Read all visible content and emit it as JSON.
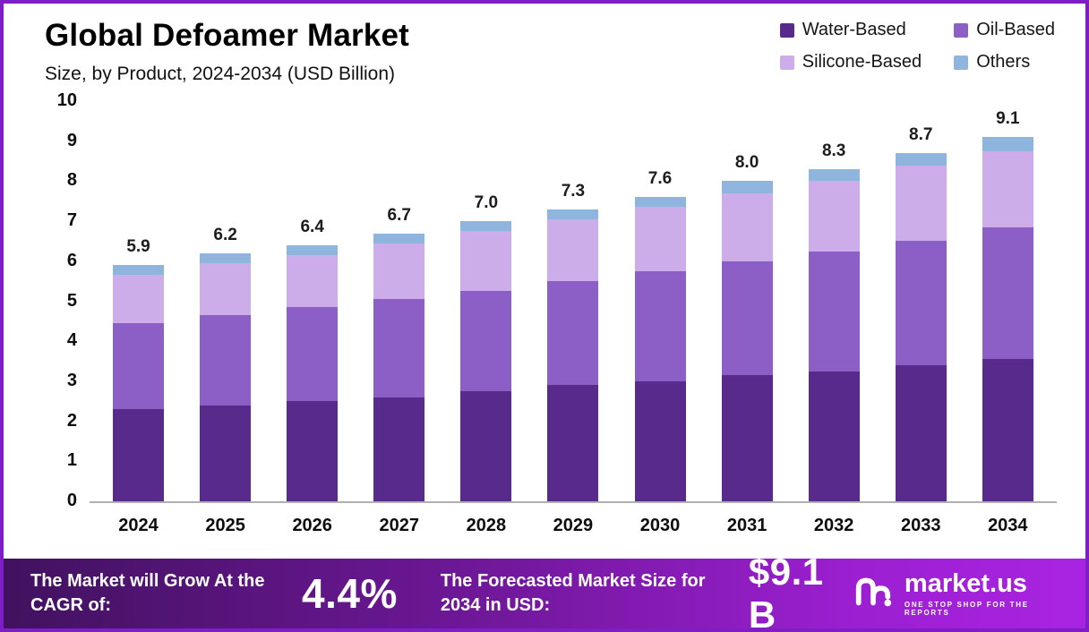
{
  "colors": {
    "frame_border": "#7d1fc4",
    "axis_line": "#b0b0b0",
    "footer_gradient_start": "#41125f",
    "footer_gradient_end": "#a924e2"
  },
  "chart_data": {
    "type": "bar",
    "stacked": true,
    "title": "Global Defoamer Market",
    "subtitle": "Size, by Product, 2024-2034 (USD Billion)",
    "categories": [
      "2024",
      "2025",
      "2026",
      "2027",
      "2028",
      "2029",
      "2030",
      "2031",
      "2032",
      "2033",
      "2034"
    ],
    "series": [
      {
        "name": "Water-Based",
        "color": "#572a8c",
        "values": [
          2.3,
          2.4,
          2.5,
          2.6,
          2.75,
          2.9,
          3.0,
          3.15,
          3.25,
          3.4,
          3.55
        ]
      },
      {
        "name": "Oil-Based",
        "color": "#8b5fc6",
        "values": [
          2.15,
          2.25,
          2.35,
          2.45,
          2.5,
          2.6,
          2.75,
          2.85,
          3.0,
          3.1,
          3.3
        ]
      },
      {
        "name": "Silicone-Based",
        "color": "#cdacea",
        "values": [
          1.2,
          1.3,
          1.3,
          1.4,
          1.5,
          1.55,
          1.6,
          1.7,
          1.75,
          1.9,
          1.9
        ]
      },
      {
        "name": "Others",
        "color": "#8fb4de",
        "values": [
          0.25,
          0.25,
          0.25,
          0.25,
          0.25,
          0.25,
          0.25,
          0.3,
          0.3,
          0.3,
          0.35
        ]
      }
    ],
    "totals": [
      5.9,
      6.2,
      6.4,
      6.7,
      7.0,
      7.3,
      7.6,
      8.0,
      8.3,
      8.7,
      9.1
    ],
    "total_labels": [
      "5.9",
      "6.2",
      "6.4",
      "6.7",
      "7.0",
      "7.3",
      "7.6",
      "8.0",
      "8.3",
      "8.7",
      "9.1"
    ],
    "ylim": [
      0,
      10
    ],
    "yticks": [
      0,
      1,
      2,
      3,
      4,
      5,
      6,
      7,
      8,
      9,
      10
    ],
    "grid": false,
    "legend_position": "top-right"
  },
  "footer": {
    "cagr_label": "The Market will Grow At the CAGR of:",
    "cagr_value": "4.4%",
    "forecast_label": "The Forecasted Market Size for 2034 in USD:",
    "forecast_value": "$9.1 B",
    "brand_name": "market.us",
    "brand_tagline": "ONE STOP SHOP FOR THE REPORTS"
  }
}
